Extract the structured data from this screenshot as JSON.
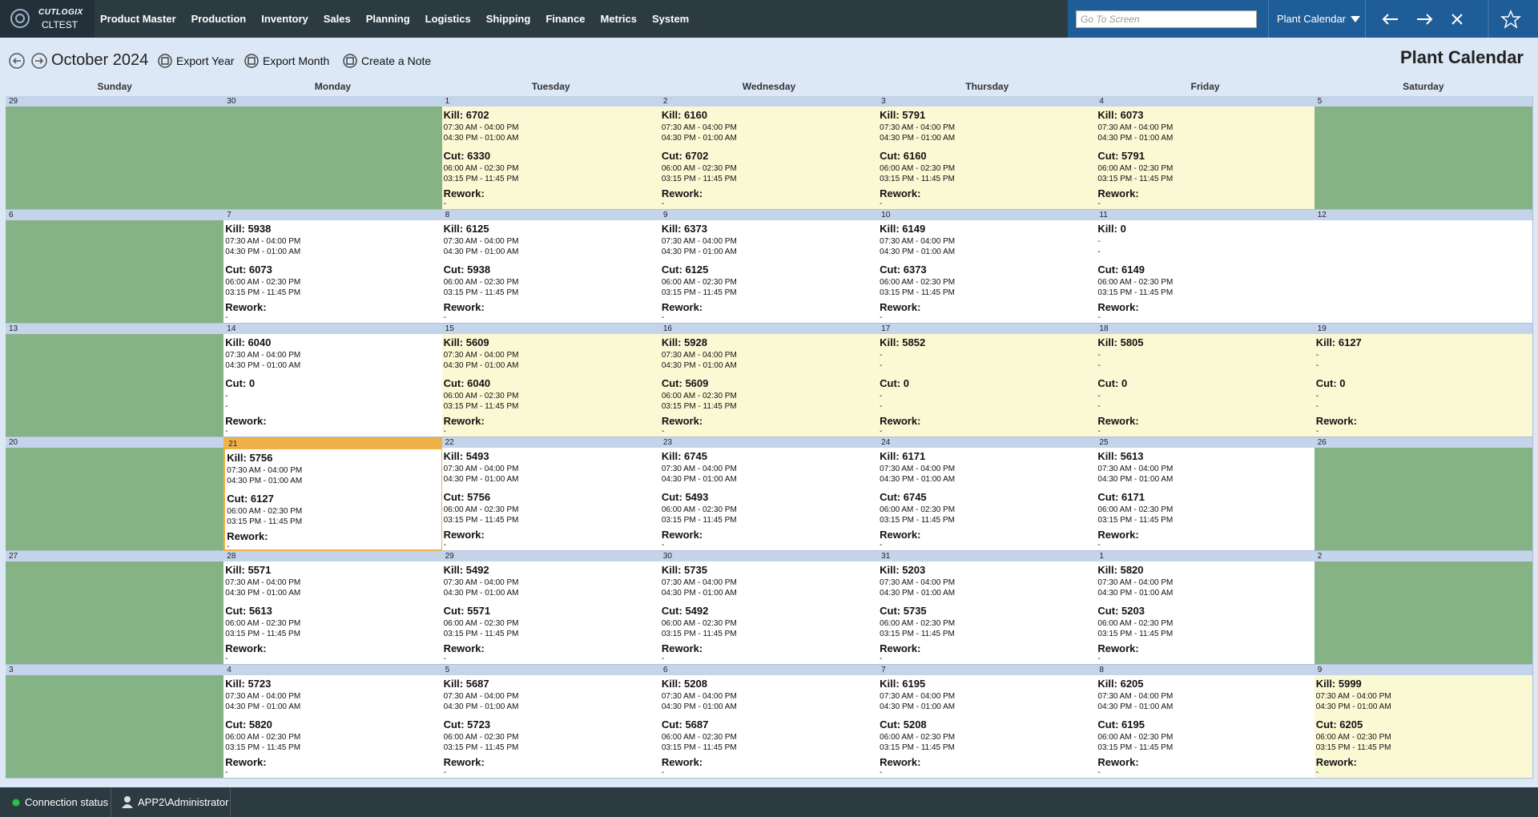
{
  "header": {
    "brand": "CUTLOGIX",
    "instance": "CLTEST",
    "nav": [
      "Product Master",
      "Production",
      "Inventory",
      "Sales",
      "Planning",
      "Logistics",
      "Shipping",
      "Finance",
      "Metrics",
      "System"
    ],
    "search_placeholder": "Go To Screen",
    "screen_select": "Plant Calendar"
  },
  "toolbar": {
    "month": "October 2024",
    "buttons": [
      "Export Year",
      "Export Month",
      "Create a Note"
    ],
    "title": "Plant Calendar"
  },
  "weekdays": [
    "Sunday",
    "Monday",
    "Tuesday",
    "Wednesday",
    "Thursday",
    "Friday",
    "Saturday"
  ],
  "weeks": [
    [
      {
        "date": "29",
        "style": "green"
      },
      {
        "date": "30",
        "style": "green"
      },
      {
        "date": "1",
        "style": "yellow",
        "kill": "Kill: 6702",
        "kill_shifts": [
          "07:30 AM - 04:00 PM",
          "04:30 PM - 01:00 AM"
        ],
        "cut": "Cut: 6330",
        "cut_shifts": [
          "06:00 AM - 02:30 PM",
          "03:15 PM - 11:45 PM"
        ],
        "rework": "Rework:",
        "rework_value": "-"
      },
      {
        "date": "2",
        "style": "yellow",
        "kill": "Kill: 6160",
        "kill_shifts": [
          "07:30 AM - 04:00 PM",
          "04:30 PM - 01:00 AM"
        ],
        "cut": "Cut: 6702",
        "cut_shifts": [
          "06:00 AM - 02:30 PM",
          "03:15 PM - 11:45 PM"
        ],
        "rework": "Rework:",
        "rework_value": "-"
      },
      {
        "date": "3",
        "style": "yellow",
        "kill": "Kill: 5791",
        "kill_shifts": [
          "07:30 AM - 04:00 PM",
          "04:30 PM - 01:00 AM"
        ],
        "cut": "Cut: 6160",
        "cut_shifts": [
          "06:00 AM - 02:30 PM",
          "03:15 PM - 11:45 PM"
        ],
        "rework": "Rework:",
        "rework_value": "-"
      },
      {
        "date": "4",
        "style": "yellow",
        "kill": "Kill: 6073",
        "kill_shifts": [
          "07:30 AM - 04:00 PM",
          "04:30 PM - 01:00 AM"
        ],
        "cut": "Cut: 5791",
        "cut_shifts": [
          "06:00 AM - 02:30 PM",
          "03:15 PM - 11:45 PM"
        ],
        "rework": "Rework:",
        "rework_value": "-"
      },
      {
        "date": "5",
        "style": "green"
      }
    ],
    [
      {
        "date": "6",
        "style": "green"
      },
      {
        "date": "7",
        "style": "white",
        "kill": "Kill: 5938",
        "kill_shifts": [
          "07:30 AM - 04:00 PM",
          "04:30 PM - 01:00 AM"
        ],
        "cut": "Cut: 6073",
        "cut_shifts": [
          "06:00 AM - 02:30 PM",
          "03:15 PM - 11:45 PM"
        ],
        "rework": "Rework:",
        "rework_value": "-"
      },
      {
        "date": "8",
        "style": "white",
        "kill": "Kill: 6125",
        "kill_shifts": [
          "07:30 AM - 04:00 PM",
          "04:30 PM - 01:00 AM"
        ],
        "cut": "Cut: 5938",
        "cut_shifts": [
          "06:00 AM - 02:30 PM",
          "03:15 PM - 11:45 PM"
        ],
        "rework": "Rework:",
        "rework_value": "-"
      },
      {
        "date": "9",
        "style": "white",
        "kill": "Kill: 6373",
        "kill_shifts": [
          "07:30 AM - 04:00 PM",
          "04:30 PM - 01:00 AM"
        ],
        "cut": "Cut: 6125",
        "cut_shifts": [
          "06:00 AM - 02:30 PM",
          "03:15 PM - 11:45 PM"
        ],
        "rework": "Rework:",
        "rework_value": "-"
      },
      {
        "date": "10",
        "style": "white",
        "kill": "Kill: 6149",
        "kill_shifts": [
          "07:30 AM - 04:00 PM",
          "04:30 PM - 01:00 AM"
        ],
        "cut": "Cut: 6373",
        "cut_shifts": [
          "06:00 AM - 02:30 PM",
          "03:15 PM - 11:45 PM"
        ],
        "rework": "Rework:",
        "rework_value": "-"
      },
      {
        "date": "11",
        "style": "white",
        "kill": "Kill: 0",
        "kill_shifts": [
          "-",
          "-"
        ],
        "cut": "Cut: 6149",
        "cut_shifts": [
          "06:00 AM - 02:30 PM",
          "03:15 PM - 11:45 PM"
        ],
        "rework": "Rework:",
        "rework_value": "-"
      },
      {
        "date": "12",
        "style": "white"
      }
    ],
    [
      {
        "date": "13",
        "style": "green"
      },
      {
        "date": "14",
        "style": "white",
        "kill": "Kill: 6040",
        "kill_shifts": [
          "07:30 AM - 04:00 PM",
          "04:30 PM - 01:00 AM"
        ],
        "cut": "Cut: 0",
        "cut_shifts": [
          "-",
          "-"
        ],
        "rework": "Rework:",
        "rework_value": "-"
      },
      {
        "date": "15",
        "style": "yellow",
        "kill": "Kill: 5609",
        "kill_shifts": [
          "07:30 AM - 04:00 PM",
          "04:30 PM - 01:00 AM"
        ],
        "cut": "Cut: 6040",
        "cut_shifts": [
          "06:00 AM - 02:30 PM",
          "03:15 PM - 11:45 PM"
        ],
        "rework": "Rework:",
        "rework_value": "-"
      },
      {
        "date": "16",
        "style": "yellow",
        "kill": "Kill: 5928",
        "kill_shifts": [
          "07:30 AM - 04:00 PM",
          "04:30 PM - 01:00 AM"
        ],
        "cut": "Cut: 5609",
        "cut_shifts": [
          "06:00 AM - 02:30 PM",
          "03:15 PM - 11:45 PM"
        ],
        "rework": "Rework:",
        "rework_value": "-"
      },
      {
        "date": "17",
        "style": "yellow",
        "kill": "Kill: 5852",
        "kill_shifts": [
          "-",
          "-"
        ],
        "cut": "Cut: 0",
        "cut_shifts": [
          "-",
          "-"
        ],
        "rework": "Rework:",
        "rework_value": "-"
      },
      {
        "date": "18",
        "style": "yellow",
        "kill": "Kill: 5805",
        "kill_shifts": [
          "-",
          "-"
        ],
        "cut": "Cut: 0",
        "cut_shifts": [
          "-",
          "-"
        ],
        "rework": "Rework:",
        "rework_value": "-"
      },
      {
        "date": "19",
        "style": "yellow",
        "kill": "Kill: 6127",
        "kill_shifts": [
          "-",
          "-"
        ],
        "cut": "Cut: 0",
        "cut_shifts": [
          "-",
          "-"
        ],
        "rework": "Rework:",
        "rework_value": "-"
      }
    ],
    [
      {
        "date": "20",
        "style": "green"
      },
      {
        "date": "21",
        "style": "today",
        "kill": "Kill: 5756",
        "kill_shifts": [
          "07:30 AM - 04:00 PM",
          "04:30 PM - 01:00 AM"
        ],
        "cut": "Cut: 6127",
        "cut_shifts": [
          "06:00 AM - 02:30 PM",
          "03:15 PM - 11:45 PM"
        ],
        "rework": "Rework:",
        "rework_value": "-"
      },
      {
        "date": "22",
        "style": "white",
        "kill": "Kill: 5493",
        "kill_shifts": [
          "07:30 AM - 04:00 PM",
          "04:30 PM - 01:00 AM"
        ],
        "cut": "Cut: 5756",
        "cut_shifts": [
          "06:00 AM - 02:30 PM",
          "03:15 PM - 11:45 PM"
        ],
        "rework": "Rework:",
        "rework_value": "-"
      },
      {
        "date": "23",
        "style": "white",
        "kill": "Kill: 6745",
        "kill_shifts": [
          "07:30 AM - 04:00 PM",
          "04:30 PM - 01:00 AM"
        ],
        "cut": "Cut: 5493",
        "cut_shifts": [
          "06:00 AM - 02:30 PM",
          "03:15 PM - 11:45 PM"
        ],
        "rework": "Rework:",
        "rework_value": "-"
      },
      {
        "date": "24",
        "style": "white",
        "kill": "Kill: 6171",
        "kill_shifts": [
          "07:30 AM - 04:00 PM",
          "04:30 PM - 01:00 AM"
        ],
        "cut": "Cut: 6745",
        "cut_shifts": [
          "06:00 AM - 02:30 PM",
          "03:15 PM - 11:45 PM"
        ],
        "rework": "Rework:",
        "rework_value": "-"
      },
      {
        "date": "25",
        "style": "white",
        "kill": "Kill: 5613",
        "kill_shifts": [
          "07:30 AM - 04:00 PM",
          "04:30 PM - 01:00 AM"
        ],
        "cut": "Cut: 6171",
        "cut_shifts": [
          "06:00 AM - 02:30 PM",
          "03:15 PM - 11:45 PM"
        ],
        "rework": "Rework:",
        "rework_value": "-"
      },
      {
        "date": "26",
        "style": "green"
      }
    ],
    [
      {
        "date": "27",
        "style": "green"
      },
      {
        "date": "28",
        "style": "white",
        "kill": "Kill: 5571",
        "kill_shifts": [
          "07:30 AM - 04:00 PM",
          "04:30 PM - 01:00 AM"
        ],
        "cut": "Cut: 5613",
        "cut_shifts": [
          "06:00 AM - 02:30 PM",
          "03:15 PM - 11:45 PM"
        ],
        "rework": "Rework:",
        "rework_value": "-"
      },
      {
        "date": "29",
        "style": "white",
        "kill": "Kill: 5492",
        "kill_shifts": [
          "07:30 AM - 04:00 PM",
          "04:30 PM - 01:00 AM"
        ],
        "cut": "Cut: 5571",
        "cut_shifts": [
          "06:00 AM - 02:30 PM",
          "03:15 PM - 11:45 PM"
        ],
        "rework": "Rework:",
        "rework_value": "-"
      },
      {
        "date": "30",
        "style": "white",
        "kill": "Kill: 5735",
        "kill_shifts": [
          "07:30 AM - 04:00 PM",
          "04:30 PM - 01:00 AM"
        ],
        "cut": "Cut: 5492",
        "cut_shifts": [
          "06:00 AM - 02:30 PM",
          "03:15 PM - 11:45 PM"
        ],
        "rework": "Rework:",
        "rework_value": "-"
      },
      {
        "date": "31",
        "style": "white",
        "kill": "Kill: 5203",
        "kill_shifts": [
          "07:30 AM - 04:00 PM",
          "04:30 PM - 01:00 AM"
        ],
        "cut": "Cut: 5735",
        "cut_shifts": [
          "06:00 AM - 02:30 PM",
          "03:15 PM - 11:45 PM"
        ],
        "rework": "Rework:",
        "rework_value": "-"
      },
      {
        "date": "1",
        "style": "white",
        "kill": "Kill: 5820",
        "kill_shifts": [
          "07:30 AM - 04:00 PM",
          "04:30 PM - 01:00 AM"
        ],
        "cut": "Cut: 5203",
        "cut_shifts": [
          "06:00 AM - 02:30 PM",
          "03:15 PM - 11:45 PM"
        ],
        "rework": "Rework:",
        "rework_value": "-"
      },
      {
        "date": "2",
        "style": "green"
      }
    ],
    [
      {
        "date": "3",
        "style": "green"
      },
      {
        "date": "4",
        "style": "white",
        "kill": "Kill: 5723",
        "kill_shifts": [
          "07:30 AM - 04:00 PM",
          "04:30 PM - 01:00 AM"
        ],
        "cut": "Cut: 5820",
        "cut_shifts": [
          "06:00 AM - 02:30 PM",
          "03:15 PM - 11:45 PM"
        ],
        "rework": "Rework:",
        "rework_value": "-"
      },
      {
        "date": "5",
        "style": "white",
        "kill": "Kill: 5687",
        "kill_shifts": [
          "07:30 AM - 04:00 PM",
          "04:30 PM - 01:00 AM"
        ],
        "cut": "Cut: 5723",
        "cut_shifts": [
          "06:00 AM - 02:30 PM",
          "03:15 PM - 11:45 PM"
        ],
        "rework": "Rework:",
        "rework_value": "-"
      },
      {
        "date": "6",
        "style": "white",
        "kill": "Kill: 5208",
        "kill_shifts": [
          "07:30 AM - 04:00 PM",
          "04:30 PM - 01:00 AM"
        ],
        "cut": "Cut: 5687",
        "cut_shifts": [
          "06:00 AM - 02:30 PM",
          "03:15 PM - 11:45 PM"
        ],
        "rework": "Rework:",
        "rework_value": "-"
      },
      {
        "date": "7",
        "style": "white",
        "kill": "Kill: 6195",
        "kill_shifts": [
          "07:30 AM - 04:00 PM",
          "04:30 PM - 01:00 AM"
        ],
        "cut": "Cut: 5208",
        "cut_shifts": [
          "06:00 AM - 02:30 PM",
          "03:15 PM - 11:45 PM"
        ],
        "rework": "Rework:",
        "rework_value": "-"
      },
      {
        "date": "8",
        "style": "white",
        "kill": "Kill: 6205",
        "kill_shifts": [
          "07:30 AM - 04:00 PM",
          "04:30 PM - 01:00 AM"
        ],
        "cut": "Cut: 6195",
        "cut_shifts": [
          "06:00 AM - 02:30 PM",
          "03:15 PM - 11:45 PM"
        ],
        "rework": "Rework:",
        "rework_value": "-"
      },
      {
        "date": "9",
        "style": "yellow",
        "kill": "Kill: 5999",
        "kill_shifts": [
          "07:30 AM - 04:00 PM",
          "04:30 PM - 01:00 AM"
        ],
        "cut": "Cut: 6205",
        "cut_shifts": [
          "06:00 AM - 02:30 PM",
          "03:15 PM - 11:45 PM"
        ],
        "rework": "Rework:",
        "rework_value": "-"
      }
    ]
  ],
  "status": {
    "connection": "Connection status",
    "user": "APP2\\Administrator"
  }
}
